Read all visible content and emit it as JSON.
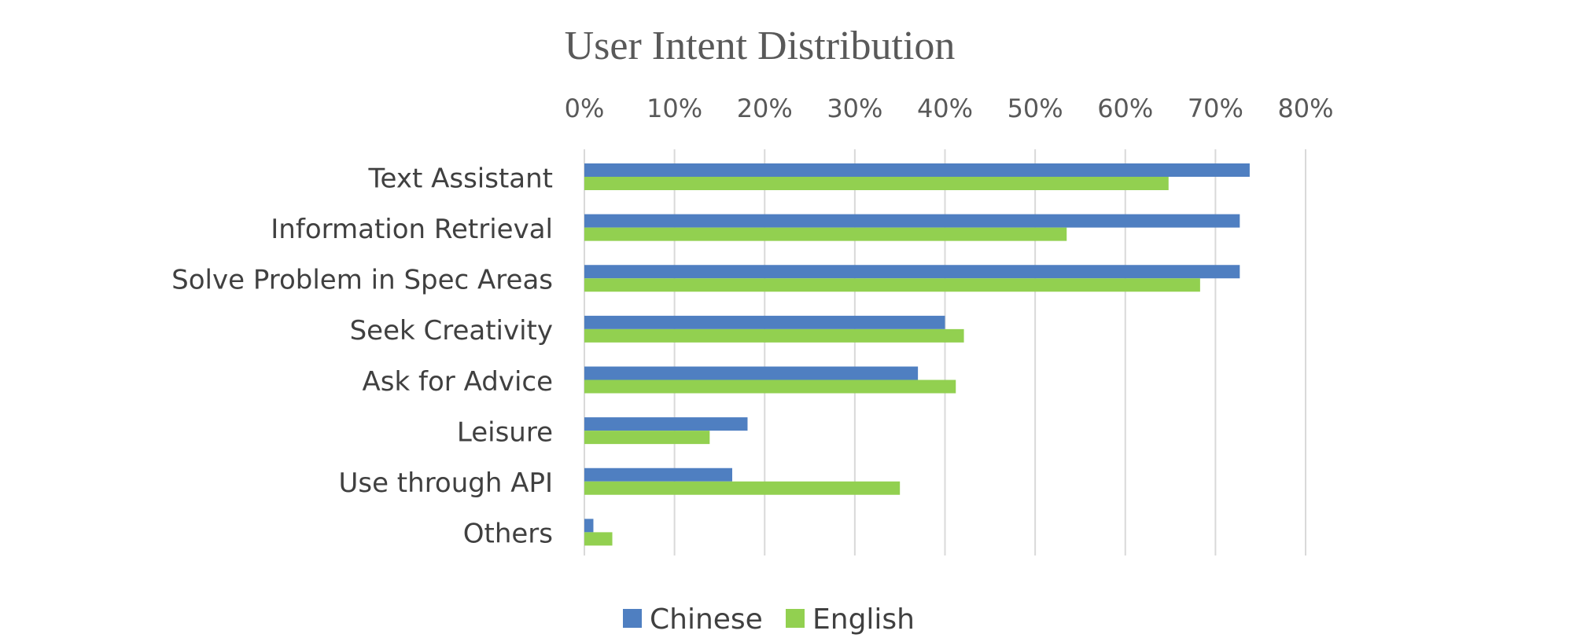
{
  "chart_data": {
    "type": "bar",
    "orientation": "horizontal",
    "title": "User Intent Distribution",
    "xlabel": "",
    "ylabel": "",
    "xlim": [
      0,
      80
    ],
    "x_ticks": [
      "0%",
      "10%",
      "20%",
      "30%",
      "40%",
      "50%",
      "60%",
      "70%",
      "80%"
    ],
    "x_axis_position": "top",
    "grid": true,
    "legend_position": "bottom",
    "categories": [
      "Text Assistant",
      "Information Retrieval",
      "Solve Problem in Spec Areas",
      "Seek Creativity",
      "Ask for Advice",
      "Leisure",
      "Use through API",
      "Others"
    ],
    "series": [
      {
        "name": "Chinese",
        "color": "#4f7fc1",
        "values": [
          73.8,
          72.7,
          72.7,
          40.0,
          37.0,
          18.1,
          16.4,
          1.0
        ]
      },
      {
        "name": "English",
        "color": "#92d050",
        "values": [
          64.8,
          53.5,
          68.3,
          42.1,
          41.2,
          13.9,
          35.0,
          3.1
        ]
      }
    ]
  }
}
